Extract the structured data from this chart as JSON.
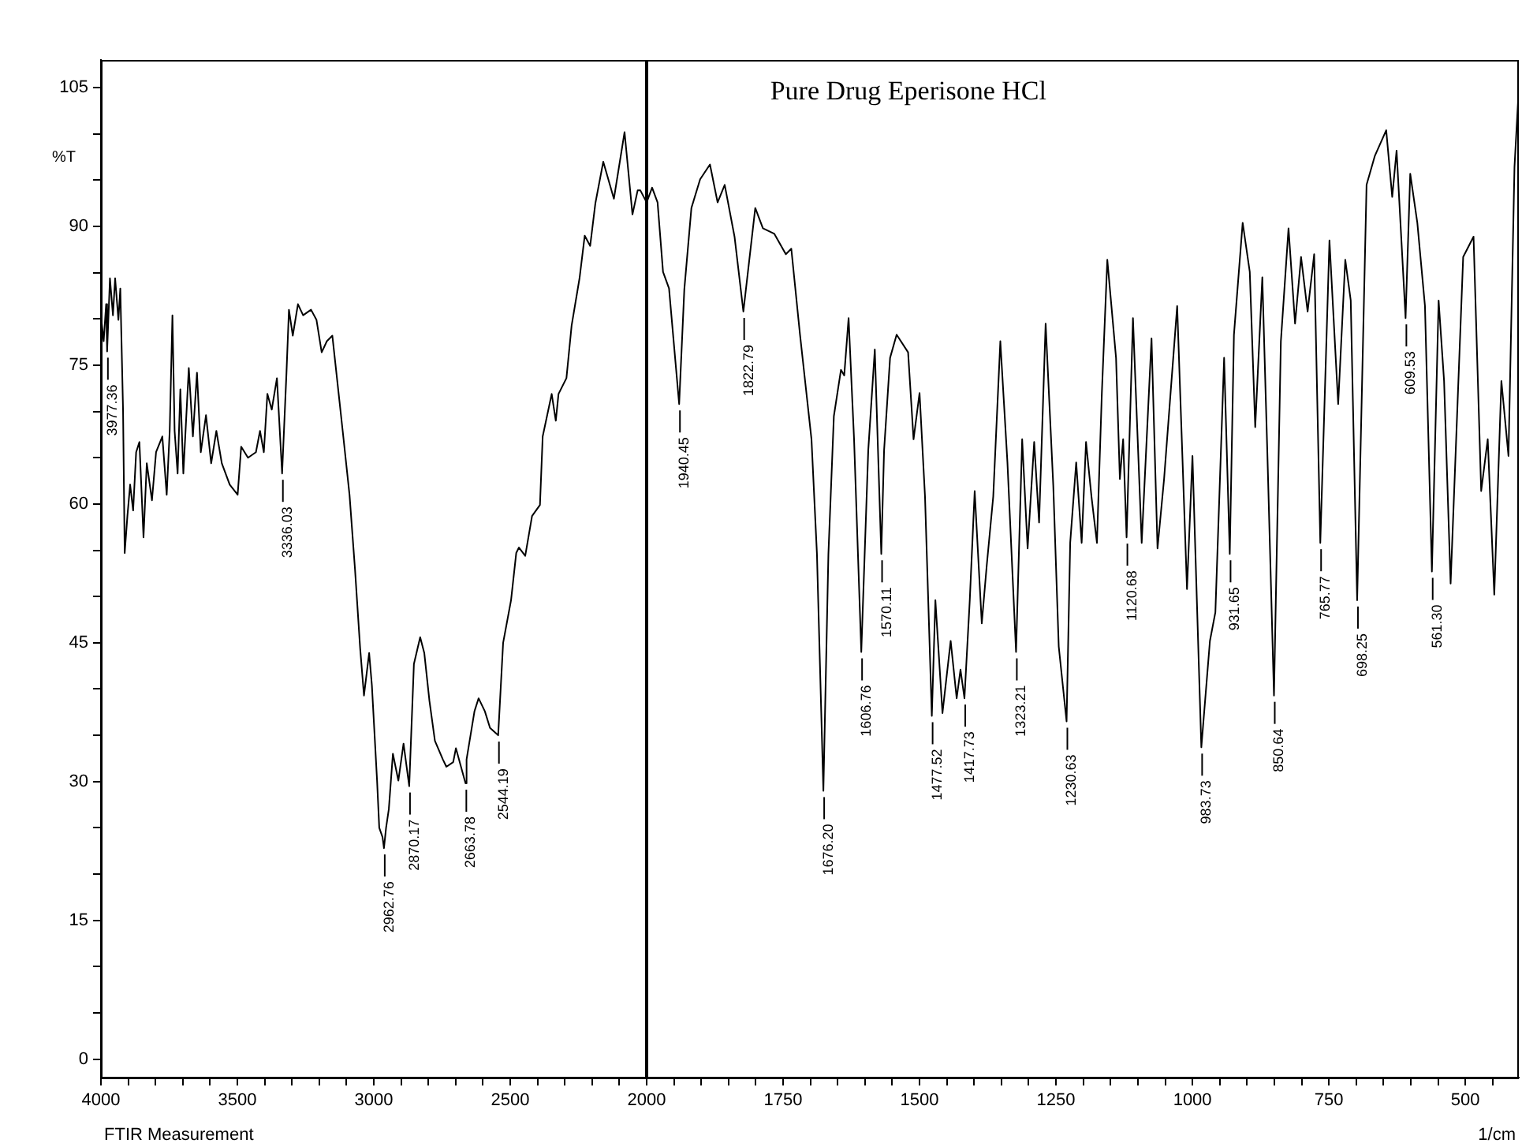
{
  "chart_data": [
    {
      "type": "line",
      "ylabel": "%T",
      "xlim": [
        4000,
        2000
      ],
      "ylim": [
        -2,
        108
      ],
      "xticks": [
        4000,
        {
          "value": 3900,
          "label": null
        },
        {
          "value": 3800,
          "label": null
        },
        {
          "value": 3700,
          "label": null
        },
        {
          "value": 3600,
          "label": null
        },
        3500,
        {
          "value": 3400,
          "label": null
        },
        {
          "value": 3300,
          "label": null
        },
        {
          "value": 3200,
          "label": null
        },
        {
          "value": 3100,
          "label": null
        },
        3000,
        {
          "value": 2900,
          "label": null
        },
        {
          "value": 2800,
          "label": null
        },
        {
          "value": 2700,
          "label": null
        },
        {
          "value": 2600,
          "label": null
        },
        2500,
        {
          "value": 2400,
          "label": null
        },
        {
          "value": 2300,
          "label": null
        },
        {
          "value": 2200,
          "label": null
        },
        {
          "value": 2100,
          "label": null
        },
        2000
      ],
      "yticks": [
        0,
        {
          "value": 5,
          "label": null
        },
        {
          "value": 10,
          "label": null
        },
        15,
        {
          "value": 20,
          "label": null
        },
        {
          "value": 25,
          "label": null
        },
        30,
        {
          "value": 35,
          "label": null
        },
        {
          "value": 40,
          "label": null
        },
        45,
        {
          "value": 50,
          "label": null
        },
        {
          "value": 55,
          "label": null
        },
        60,
        {
          "value": 65,
          "label": null
        },
        {
          "value": 70,
          "label": null
        },
        75,
        {
          "value": 80,
          "label": null
        },
        {
          "value": 85,
          "label": null
        },
        90,
        {
          "value": 95,
          "label": null
        },
        {
          "value": 100,
          "label": null
        },
        105
      ],
      "grid": false,
      "legend": false,
      "marker": "none",
      "line_style": "solid",
      "series": [
        {
          "color": "#000000",
          "x": [
            4000,
            3990,
            3981,
            3977.36,
            3967,
            3956,
            3948,
            3936,
            3929,
            3919,
            3913,
            3903,
            3893,
            3882,
            3871,
            3859,
            3844,
            3832,
            3813,
            3798,
            3775,
            3759,
            3748,
            3738,
            3730,
            3719,
            3709,
            3698,
            3678,
            3663,
            3648,
            3634,
            3615,
            3596,
            3577,
            3557,
            3528,
            3499,
            3486,
            3461,
            3432,
            3417,
            3403,
            3390,
            3374,
            3355,
            3336.03,
            3320,
            3311,
            3297,
            3278,
            3259,
            3230,
            3210,
            3191,
            3172,
            3152,
            3139,
            3114,
            3089,
            3069,
            3050,
            3036,
            3017,
            3007,
            2988,
            2980,
            2968,
            2962.76,
            2955,
            2945,
            2930,
            2910,
            2891,
            2870.17,
            2853,
            2830,
            2815,
            2796,
            2776,
            2747,
            2734,
            2709,
            2699,
            2663.78,
            2660,
            2631,
            2616,
            2593,
            2574,
            2544.19,
            2526,
            2497,
            2478,
            2468,
            2445,
            2420,
            2391,
            2381,
            2348,
            2333,
            2323,
            2294,
            2275,
            2246,
            2227,
            2207,
            2188,
            2159,
            2120,
            2081,
            2052,
            2033,
            2023,
            2000
          ],
          "values": [
            80.4,
            77.6,
            81.6,
            76.5,
            84.4,
            80.4,
            84.4,
            79.9,
            83.3,
            70.2,
            54.7,
            58.7,
            62.1,
            59.3,
            65.6,
            66.7,
            56.4,
            64.4,
            60.4,
            65.6,
            67.3,
            61.0,
            67.9,
            80.4,
            67.9,
            63.3,
            72.4,
            63.3,
            74.7,
            67.3,
            74.2,
            65.6,
            69.6,
            64.4,
            67.9,
            64.4,
            62.1,
            61.0,
            66.2,
            65.0,
            65.6,
            67.9,
            65.6,
            71.9,
            70.2,
            73.6,
            63.3,
            74.2,
            81.0,
            78.2,
            81.6,
            80.4,
            81.0,
            79.9,
            76.4,
            77.6,
            78.2,
            74.7,
            67.9,
            61.0,
            53.0,
            44.4,
            39.3,
            43.9,
            40.4,
            30.1,
            25.0,
            24.0,
            22.8,
            25.0,
            27.0,
            33.0,
            30.1,
            34.1,
            29.5,
            42.7,
            45.6,
            43.9,
            38.7,
            34.4,
            32.4,
            31.6,
            32.1,
            33.6,
            29.8,
            32.4,
            37.6,
            39.0,
            37.6,
            35.8,
            35.0,
            45.0,
            49.6,
            54.7,
            55.3,
            54.4,
            58.7,
            59.9,
            67.3,
            71.9,
            69.0,
            71.9,
            73.6,
            79.3,
            84.4,
            89.0,
            87.9,
            92.5,
            97.0,
            93.0,
            100.2,
            91.3,
            93.9,
            93.9,
            92.6
          ]
        }
      ],
      "annotations": [
        "FTIR Measurement",
        {
          "text": "3977.36",
          "x": 3977.36,
          "y": 76.5
        },
        {
          "text": "3336.03",
          "x": 3336.03,
          "y": 63.3
        },
        {
          "text": "2962.76",
          "x": 2962.76,
          "y": 22.8
        },
        {
          "text": "2870.17",
          "x": 2870.17,
          "y": 29.5
        },
        {
          "text": "2663.78",
          "x": 2663.78,
          "y": 29.8
        },
        {
          "text": "2544.19",
          "x": 2544.19,
          "y": 35.0
        }
      ]
    },
    {
      "type": "line",
      "title": "Pure Drug Eperisone HCl",
      "xlabel": "1/cm",
      "xlim": [
        2000,
        402
      ],
      "ylim": [
        -2,
        108
      ],
      "tick_labels": "x",
      "xticks": [
        {
          "value": 2000,
          "label": null
        },
        {
          "value": 1950,
          "label": null
        },
        {
          "value": 1900,
          "label": null
        },
        {
          "value": 1850,
          "label": null
        },
        {
          "value": 1800,
          "label": null
        },
        1750,
        {
          "value": 1700,
          "label": null
        },
        {
          "value": 1650,
          "label": null
        },
        {
          "value": 1600,
          "label": null
        },
        {
          "value": 1550,
          "label": null
        },
        1500,
        {
          "value": 1450,
          "label": null
        },
        {
          "value": 1400,
          "label": null
        },
        {
          "value": 1350,
          "label": null
        },
        {
          "value": 1300,
          "label": null
        },
        1250,
        {
          "value": 1200,
          "label": null
        },
        {
          "value": 1150,
          "label": null
        },
        {
          "value": 1100,
          "label": null
        },
        {
          "value": 1050,
          "label": null
        },
        1000,
        {
          "value": 950,
          "label": null
        },
        {
          "value": 900,
          "label": null
        },
        {
          "value": 850,
          "label": null
        },
        {
          "value": 800,
          "label": null
        },
        750,
        {
          "value": 700,
          "label": null
        },
        {
          "value": 650,
          "label": null
        },
        {
          "value": 600,
          "label": null
        },
        {
          "value": 550,
          "label": null
        },
        500,
        {
          "value": 450,
          "label": null
        }
      ],
      "grid": false,
      "legend": false,
      "marker": "none",
      "line_style": "solid",
      "series": [
        {
          "color": "#000000",
          "x": [
            2000,
            1990,
            1980,
            1970,
            1959,
            1940.45,
            1931,
            1918,
            1902,
            1884,
            1870,
            1857,
            1839,
            1822.79,
            1801,
            1787,
            1766,
            1745,
            1735,
            1719,
            1698,
            1688,
            1676.2,
            1667,
            1657,
            1644,
            1638,
            1630,
            1620,
            1606.76,
            1594,
            1582,
            1570.11,
            1565,
            1554,
            1542,
            1521,
            1511,
            1500,
            1490,
            1477.52,
            1471,
            1458,
            1443,
            1432,
            1425,
            1417.73,
            1408,
            1399,
            1386,
            1377,
            1365,
            1352,
            1339,
            1323.21,
            1312,
            1302,
            1290,
            1281,
            1269,
            1255,
            1245,
            1230.63,
            1224,
            1213,
            1203,
            1195,
            1185,
            1175,
            1166,
            1156,
            1140,
            1133,
            1127,
            1120.68,
            1109,
            1093,
            1075,
            1064,
            1052,
            1028,
            1010,
            1000,
            983.73,
            968,
            958,
            942,
            931.65,
            924,
            908,
            895,
            885,
            872,
            862,
            850.64,
            838,
            824,
            812,
            801,
            789,
            777,
            765.77,
            749,
            733,
            720,
            710,
            698.25,
            681,
            666,
            645,
            634,
            626,
            609.53,
            601,
            588,
            574,
            561.3,
            549,
            539,
            527,
            504,
            485,
            471,
            459,
            447,
            434,
            421,
            410,
            403
          ],
          "values": [
            92.6,
            94.2,
            92.6,
            85.1,
            83.3,
            70.8,
            83.2,
            92.0,
            95.1,
            96.7,
            92.6,
            94.5,
            88.9,
            80.8,
            92.0,
            89.8,
            89.2,
            87.0,
            87.6,
            78.3,
            67.0,
            54.6,
            29.0,
            54.6,
            69.5,
            74.5,
            73.9,
            80.1,
            67.0,
            44.0,
            65.8,
            76.7,
            54.6,
            65.8,
            75.8,
            78.3,
            76.4,
            67.0,
            72.0,
            60.8,
            37.1,
            49.6,
            37.4,
            45.2,
            39.0,
            42.1,
            39.0,
            49.6,
            61.4,
            47.1,
            53.3,
            60.8,
            77.6,
            64.5,
            44.0,
            67.0,
            55.2,
            66.7,
            58.0,
            79.5,
            62.0,
            44.6,
            36.5,
            55.8,
            64.5,
            55.8,
            66.7,
            60.8,
            55.8,
            72.0,
            86.4,
            75.8,
            62.7,
            67.0,
            56.4,
            80.1,
            55.8,
            77.9,
            55.2,
            62.7,
            81.4,
            50.8,
            65.2,
            33.7,
            45.2,
            48.3,
            75.8,
            54.6,
            78.3,
            90.4,
            85.1,
            68.3,
            84.5,
            63.9,
            39.3,
            77.6,
            89.8,
            79.5,
            86.7,
            80.8,
            87.0,
            55.8,
            88.5,
            70.8,
            86.4,
            82.0,
            49.6,
            94.5,
            97.6,
            100.4,
            93.2,
            98.2,
            80.1,
            95.7,
            90.4,
            81.4,
            52.7,
            82.0,
            73.3,
            51.4,
            86.7,
            88.9,
            61.4,
            67.0,
            50.2,
            73.3,
            65.2,
            96.4,
            104.0
          ]
        }
      ],
      "annotations": [
        {
          "text": "1940.45",
          "x": 1940.45,
          "y": 70.8
        },
        {
          "text": "1822.79",
          "x": 1822.79,
          "y": 80.8
        },
        {
          "text": "1676.20",
          "x": 1676.2,
          "y": 29.0
        },
        {
          "text": "1606.76",
          "x": 1606.76,
          "y": 44.0
        },
        {
          "text": "1570.11",
          "x": 1570.11,
          "y": 54.6
        },
        {
          "text": "1477.52",
          "x": 1477.52,
          "y": 37.1
        },
        {
          "text": "1417.73",
          "x": 1417.73,
          "y": 39.0
        },
        {
          "text": "1323.21",
          "x": 1323.21,
          "y": 44.0
        },
        {
          "text": "1230.63",
          "x": 1230.63,
          "y": 36.5
        },
        {
          "text": "1120.68",
          "x": 1120.68,
          "y": 56.4
        },
        {
          "text": "983.73",
          "x": 983.73,
          "y": 33.7
        },
        {
          "text": "931.65",
          "x": 931.65,
          "y": 54.6
        },
        {
          "text": "850.64",
          "x": 850.64,
          "y": 39.3
        },
        {
          "text": "765.77",
          "x": 765.77,
          "y": 55.8
        },
        {
          "text": "698.25",
          "x": 698.25,
          "y": 49.6
        },
        {
          "text": "609.53",
          "x": 609.53,
          "y": 80.1
        },
        {
          "text": "561.30",
          "x": 561.3,
          "y": 52.7
        }
      ]
    }
  ]
}
